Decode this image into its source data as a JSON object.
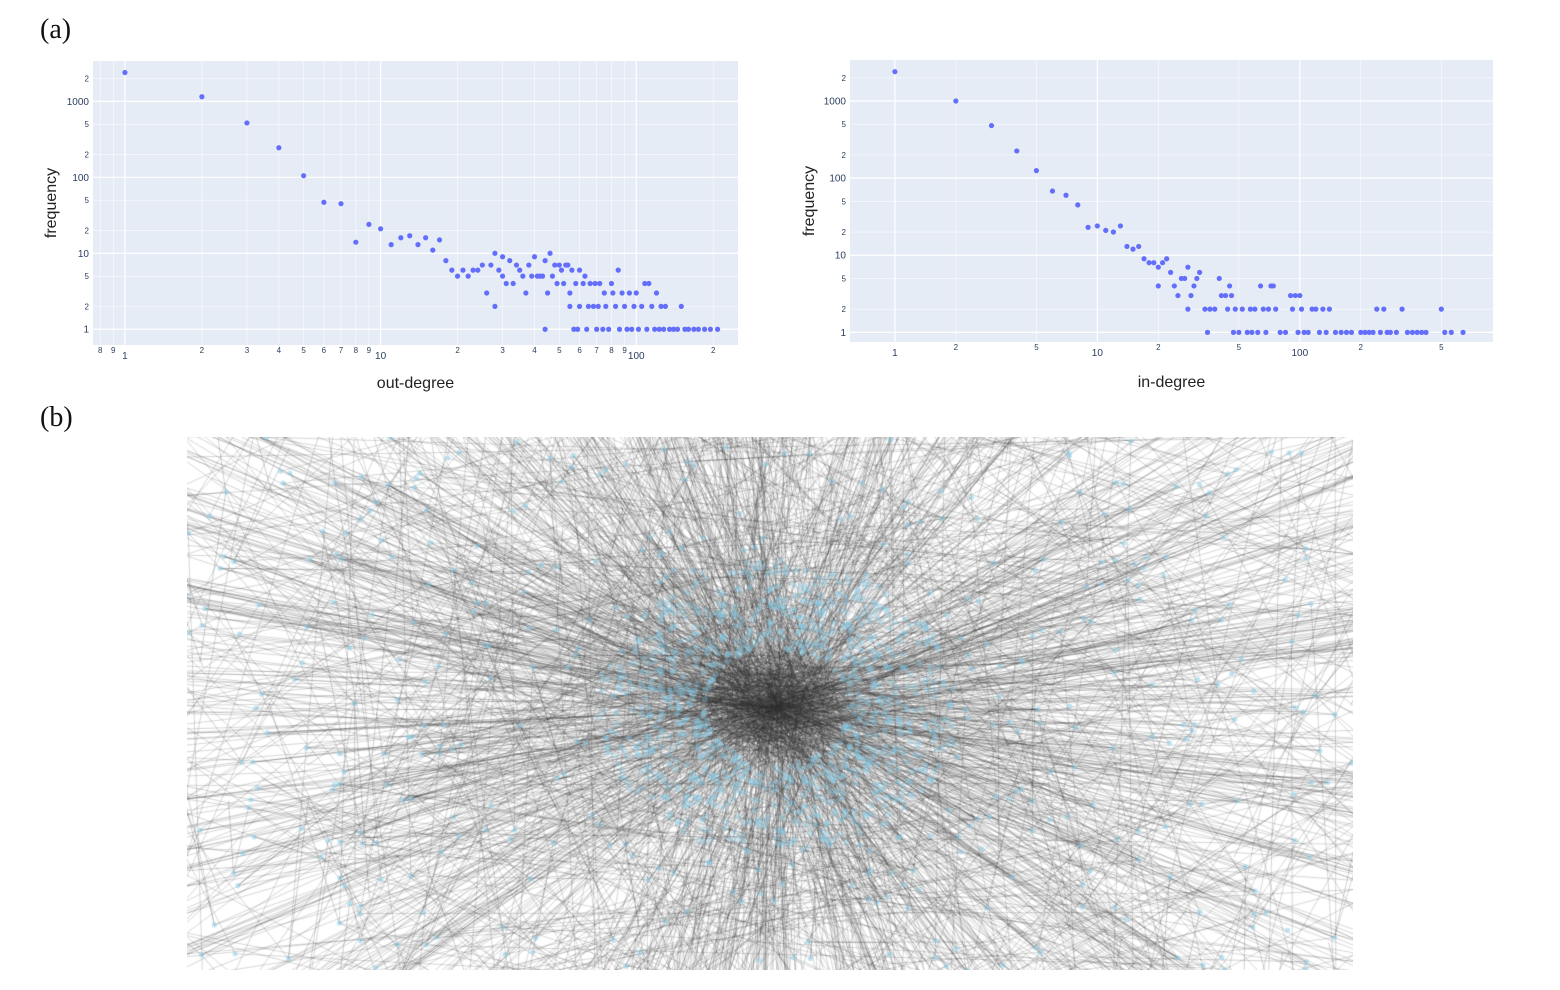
{
  "panel_labels": {
    "a": "(a)",
    "b": "(b)"
  },
  "chart_data": [
    {
      "type": "scatter",
      "title": "",
      "xlabel": "out-degree",
      "ylabel": "frequency",
      "x_scale": "log",
      "y_scale": "log",
      "xlim": [
        0.75,
        250
      ],
      "ylim": [
        0.62,
        3400
      ],
      "grid": true,
      "color": "#636efa",
      "x_major_ticks": [
        1,
        10,
        100
      ],
      "x_major_tick_labels": [
        "1",
        "10",
        "100"
      ],
      "x_minor_ticks": [
        0.8,
        0.9,
        2,
        3,
        4,
        5,
        6,
        7,
        8,
        9,
        20,
        30,
        40,
        50,
        60,
        70,
        80,
        90,
        200
      ],
      "x_minor_tick_labels": [
        "8",
        "9",
        "2",
        "3",
        "4",
        "5",
        "6",
        "7",
        "8",
        "9",
        "2",
        "3",
        "4",
        "5",
        "6",
        "7",
        "8",
        "9",
        "2"
      ],
      "y_major_ticks": [
        1,
        10,
        100,
        1000
      ],
      "y_major_tick_labels": [
        "1",
        "10",
        "100",
        "1000"
      ],
      "y_minor_ticks": [
        2,
        5,
        20,
        50,
        200,
        500,
        2000
      ],
      "y_minor_tick_labels": [
        "2",
        "5",
        "2",
        "5",
        "2",
        "5",
        "2"
      ],
      "points": [
        [
          1,
          2400
        ],
        [
          2,
          1150
        ],
        [
          3,
          520
        ],
        [
          4,
          245
        ],
        [
          5,
          105
        ],
        [
          6,
          47
        ],
        [
          7,
          45
        ],
        [
          8,
          14
        ],
        [
          9,
          24
        ],
        [
          10,
          21
        ],
        [
          11,
          13
        ],
        [
          12,
          16
        ],
        [
          13,
          17
        ],
        [
          14,
          13
        ],
        [
          15,
          16
        ],
        [
          16,
          11
        ],
        [
          17,
          15
        ],
        [
          18,
          8
        ],
        [
          19,
          6
        ],
        [
          20,
          5
        ],
        [
          21,
          6
        ],
        [
          22,
          5
        ],
        [
          23,
          6
        ],
        [
          24,
          6
        ],
        [
          25,
          7
        ],
        [
          26,
          3
        ],
        [
          27,
          7
        ],
        [
          28,
          10
        ],
        [
          28,
          2
        ],
        [
          29,
          6
        ],
        [
          30,
          9
        ],
        [
          30,
          5
        ],
        [
          31,
          4
        ],
        [
          32,
          8
        ],
        [
          33,
          4
        ],
        [
          34,
          7
        ],
        [
          35,
          6
        ],
        [
          36,
          5
        ],
        [
          37,
          3
        ],
        [
          38,
          7
        ],
        [
          39,
          5
        ],
        [
          40,
          9
        ],
        [
          41,
          5
        ],
        [
          42,
          5
        ],
        [
          43,
          5
        ],
        [
          44,
          1
        ],
        [
          44,
          8
        ],
        [
          45,
          3
        ],
        [
          46,
          10
        ],
        [
          47,
          5
        ],
        [
          48,
          7
        ],
        [
          49,
          4
        ],
        [
          50,
          7
        ],
        [
          51,
          6
        ],
        [
          52,
          4
        ],
        [
          53,
          7
        ],
        [
          54,
          7
        ],
        [
          55,
          3
        ],
        [
          55,
          2
        ],
        [
          56,
          6
        ],
        [
          57,
          1
        ],
        [
          58,
          4
        ],
        [
          59,
          1
        ],
        [
          60,
          6
        ],
        [
          60,
          2
        ],
        [
          62,
          4
        ],
        [
          63,
          5
        ],
        [
          64,
          1
        ],
        [
          65,
          2
        ],
        [
          66,
          4
        ],
        [
          68,
          2
        ],
        [
          69,
          4
        ],
        [
          70,
          1
        ],
        [
          71,
          2
        ],
        [
          72,
          4
        ],
        [
          74,
          1
        ],
        [
          75,
          3
        ],
        [
          76,
          2
        ],
        [
          78,
          1
        ],
        [
          80,
          4
        ],
        [
          81,
          3
        ],
        [
          83,
          2
        ],
        [
          85,
          6
        ],
        [
          86,
          1
        ],
        [
          88,
          3
        ],
        [
          90,
          2
        ],
        [
          92,
          1
        ],
        [
          94,
          3
        ],
        [
          96,
          1
        ],
        [
          98,
          2
        ],
        [
          100,
          3
        ],
        [
          102,
          1
        ],
        [
          105,
          2
        ],
        [
          108,
          4
        ],
        [
          110,
          1
        ],
        [
          112,
          4
        ],
        [
          115,
          2
        ],
        [
          118,
          1
        ],
        [
          120,
          3
        ],
        [
          123,
          1
        ],
        [
          125,
          2
        ],
        [
          128,
          1
        ],
        [
          130,
          2
        ],
        [
          135,
          1
        ],
        [
          140,
          1
        ],
        [
          145,
          1
        ],
        [
          150,
          2
        ],
        [
          155,
          1
        ],
        [
          160,
          1
        ],
        [
          168,
          1
        ],
        [
          175,
          1
        ],
        [
          185,
          1
        ],
        [
          195,
          1
        ],
        [
          208,
          1
        ]
      ]
    },
    {
      "type": "scatter",
      "title": "",
      "xlabel": "in-degree",
      "ylabel": "frequency",
      "x_scale": "log",
      "y_scale": "log",
      "xlim": [
        0.6,
        900
      ],
      "ylim": [
        0.75,
        3400
      ],
      "grid": true,
      "color": "#636efa",
      "x_major_ticks": [
        1,
        10,
        100
      ],
      "x_major_tick_labels": [
        "1",
        "10",
        "100"
      ],
      "x_minor_ticks": [
        2,
        5,
        20,
        50,
        200,
        500
      ],
      "x_minor_tick_labels": [
        "2",
        "5",
        "2",
        "5",
        "2",
        "5"
      ],
      "y_major_ticks": [
        1,
        10,
        100,
        1000
      ],
      "y_major_tick_labels": [
        "1",
        "10",
        "100",
        "1000"
      ],
      "y_minor_ticks": [
        2,
        5,
        20,
        50,
        200,
        500,
        2000
      ],
      "y_minor_tick_labels": [
        "2",
        "5",
        "2",
        "5",
        "2",
        "5",
        "2"
      ],
      "points": [
        [
          1,
          2400
        ],
        [
          2,
          1000
        ],
        [
          3,
          480
        ],
        [
          4,
          225
        ],
        [
          5,
          125
        ],
        [
          6,
          68
        ],
        [
          7,
          60
        ],
        [
          8,
          45
        ],
        [
          9,
          23
        ],
        [
          10,
          24
        ],
        [
          11,
          21
        ],
        [
          12,
          20
        ],
        [
          13,
          24
        ],
        [
          14,
          13
        ],
        [
          15,
          12
        ],
        [
          16,
          13
        ],
        [
          17,
          9
        ],
        [
          18,
          8
        ],
        [
          19,
          8
        ],
        [
          20,
          4
        ],
        [
          20,
          7
        ],
        [
          21,
          8
        ],
        [
          22,
          9
        ],
        [
          23,
          6
        ],
        [
          24,
          4
        ],
        [
          25,
          3
        ],
        [
          26,
          5
        ],
        [
          27,
          5
        ],
        [
          28,
          7
        ],
        [
          28,
          2
        ],
        [
          29,
          3
        ],
        [
          30,
          4
        ],
        [
          31,
          5
        ],
        [
          32,
          6
        ],
        [
          34,
          2
        ],
        [
          35,
          1
        ],
        [
          36,
          2
        ],
        [
          38,
          2
        ],
        [
          40,
          5
        ],
        [
          41,
          3
        ],
        [
          43,
          3
        ],
        [
          44,
          2
        ],
        [
          45,
          4
        ],
        [
          46,
          3
        ],
        [
          47,
          1
        ],
        [
          48,
          2
        ],
        [
          50,
          1
        ],
        [
          52,
          2
        ],
        [
          55,
          1
        ],
        [
          57,
          2
        ],
        [
          58,
          1
        ],
        [
          60,
          2
        ],
        [
          62,
          1
        ],
        [
          64,
          4
        ],
        [
          66,
          2
        ],
        [
          68,
          1
        ],
        [
          70,
          2
        ],
        [
          72,
          4
        ],
        [
          74,
          4
        ],
        [
          76,
          2
        ],
        [
          80,
          1
        ],
        [
          85,
          1
        ],
        [
          90,
          3
        ],
        [
          92,
          2
        ],
        [
          95,
          3
        ],
        [
          98,
          1
        ],
        [
          100,
          3
        ],
        [
          102,
          2
        ],
        [
          105,
          1
        ],
        [
          110,
          1
        ],
        [
          115,
          2
        ],
        [
          120,
          2
        ],
        [
          125,
          1
        ],
        [
          130,
          2
        ],
        [
          135,
          1
        ],
        [
          140,
          2
        ],
        [
          150,
          1
        ],
        [
          160,
          1
        ],
        [
          170,
          1
        ],
        [
          180,
          1
        ],
        [
          200,
          1
        ],
        [
          210,
          1
        ],
        [
          220,
          1
        ],
        [
          230,
          1
        ],
        [
          240,
          2
        ],
        [
          250,
          1
        ],
        [
          260,
          2
        ],
        [
          270,
          1
        ],
        [
          280,
          1
        ],
        [
          300,
          1
        ],
        [
          320,
          2
        ],
        [
          340,
          1
        ],
        [
          360,
          1
        ],
        [
          380,
          1
        ],
        [
          400,
          1
        ],
        [
          420,
          1
        ],
        [
          500,
          2
        ],
        [
          520,
          1
        ],
        [
          560,
          1
        ],
        [
          640,
          1
        ]
      ]
    }
  ],
  "network": {
    "node_color": "#87ceeb",
    "edge_color": "#2f2f2f",
    "background": "#ffffff"
  }
}
